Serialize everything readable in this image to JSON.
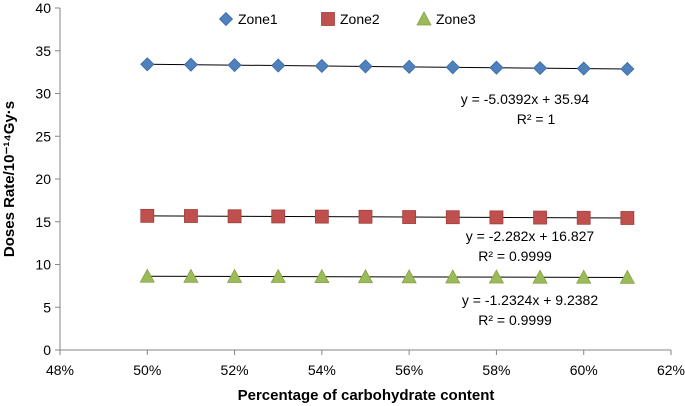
{
  "chart_data": {
    "type": "scatter",
    "title": "",
    "xlabel": "Percentage of carbohydrate content",
    "ylabel": "Doses Rate/10⁻¹⁴Gy·s",
    "xlim": [
      0.48,
      0.62
    ],
    "ylim": [
      0,
      40
    ],
    "x_ticks": [
      0.48,
      0.5,
      0.52,
      0.54,
      0.56,
      0.58,
      0.6,
      0.62
    ],
    "x_tick_labels": [
      "48%",
      "50%",
      "52%",
      "54%",
      "56%",
      "58%",
      "60%",
      "62%"
    ],
    "y_ticks": [
      0,
      5,
      10,
      15,
      20,
      25,
      30,
      35,
      40
    ],
    "y_tick_labels": [
      "0",
      "5",
      "10",
      "15",
      "20",
      "25",
      "30",
      "35",
      "40"
    ],
    "grid": false,
    "legend_position": "top",
    "x": [
      0.5,
      0.51,
      0.52,
      0.53,
      0.54,
      0.55,
      0.56,
      0.57,
      0.58,
      0.59,
      0.6,
      0.61
    ],
    "series": [
      {
        "name": "Zone1",
        "marker": "diamond",
        "color": "#4F81BD",
        "values": [
          33.42,
          33.37,
          33.32,
          33.27,
          33.22,
          33.17,
          33.12,
          33.07,
          33.02,
          32.97,
          32.92,
          32.87
        ],
        "trendline": {
          "slope": -5.0392,
          "intercept": 35.94
        },
        "equation": "y = -5.0392x + 35.94",
        "r2": "R² = 1"
      },
      {
        "name": "Zone2",
        "marker": "square",
        "color": "#C0504D",
        "values": [
          15.69,
          15.67,
          15.64,
          15.62,
          15.6,
          15.58,
          15.55,
          15.53,
          15.51,
          15.49,
          15.46,
          15.44
        ],
        "trendline": {
          "slope": -2.282,
          "intercept": 16.827
        },
        "equation": "y = -2.282x + 16.827",
        "r2": "R² = 0.9999"
      },
      {
        "name": "Zone3",
        "marker": "triangle",
        "color": "#9BBB59",
        "values": [
          8.62,
          8.61,
          8.6,
          8.59,
          8.58,
          8.56,
          8.55,
          8.54,
          8.53,
          8.51,
          8.5,
          8.49
        ],
        "trendline": {
          "slope": -1.2324,
          "intercept": 9.2382
        },
        "equation": "y = -1.2324x + 9.2382",
        "r2": "R² = 0.9999"
      }
    ]
  }
}
